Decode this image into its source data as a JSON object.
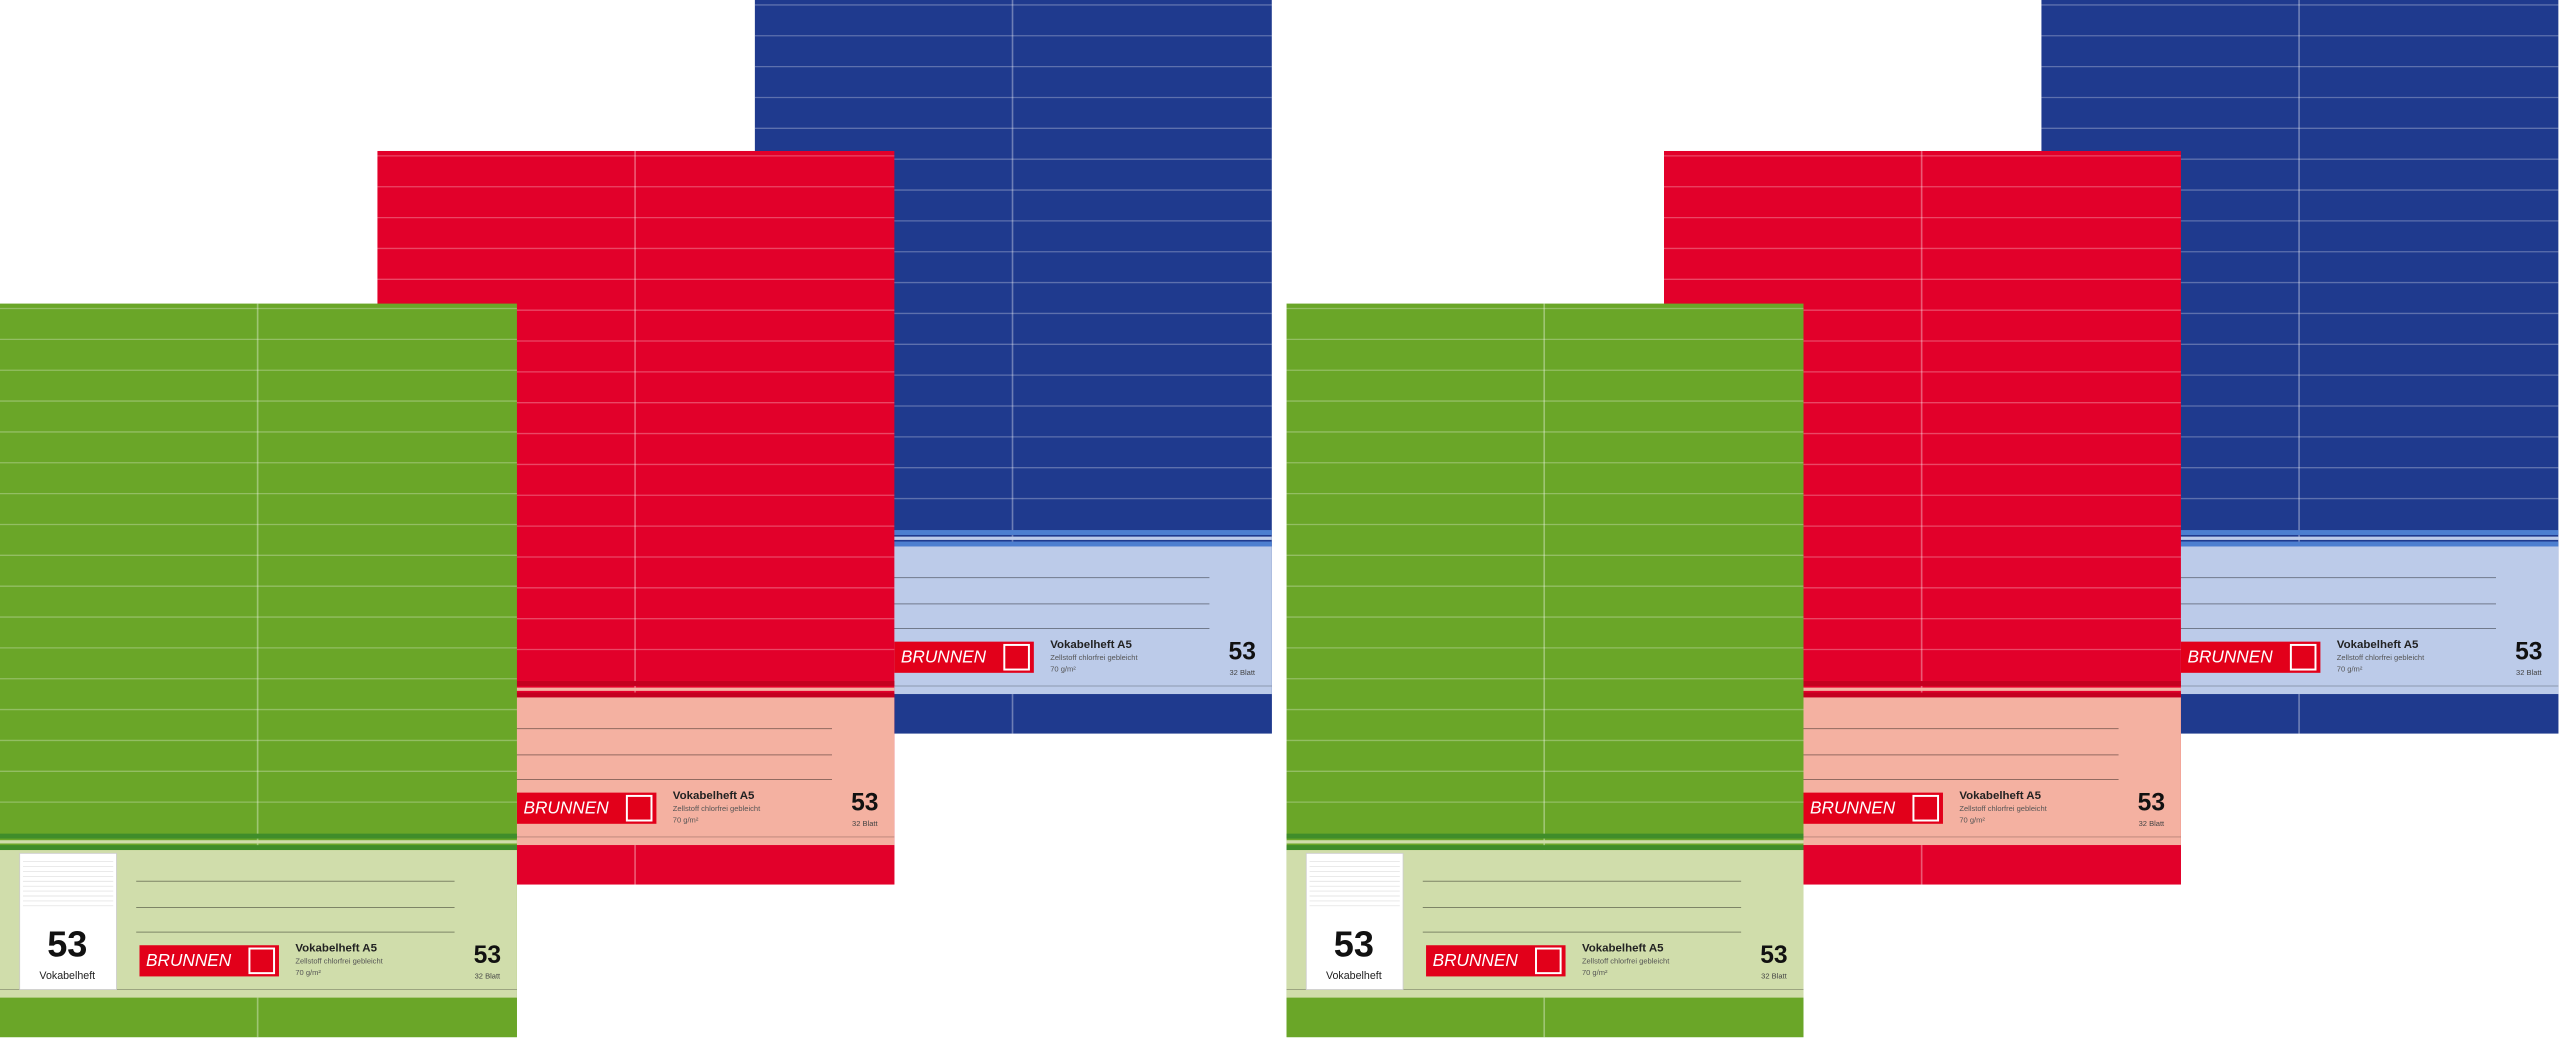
{
  "notebooks": [
    {
      "cover": "#1f3a8e",
      "panel": "#bccbe9",
      "stripe": "#4d7fd0"
    },
    {
      "cover": "#e2002a",
      "panel": "#f4b1a1",
      "stripe": "#c4001f"
    },
    {
      "cover": "#6aa628",
      "panel": "#d0ddab",
      "stripe": "#3f8d2a"
    }
  ],
  "label": {
    "cover_number": "53",
    "cover_label": "Vokabelheft",
    "brand": "BRUNNEN",
    "title": "Vokabelheft A5",
    "subtitle": "Zellstoff chlorfrei gebleicht",
    "weight": "70 g/m²",
    "number": "53",
    "sheets": "32 Blatt"
  }
}
